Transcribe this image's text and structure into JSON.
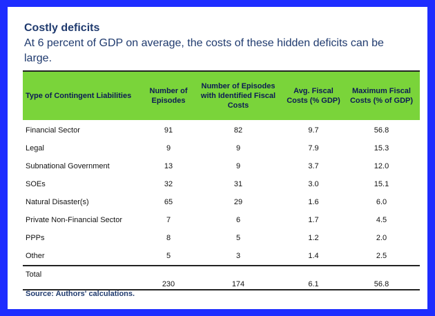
{
  "title": "Costly deficits",
  "subtitle": "At 6 percent of GDP on average, the costs of these hidden deficits can be large.",
  "table": {
    "headers": [
      "Type of Contingent Liabilities",
      "Number of Episodes",
      "Number of Episodes with Identified Fiscal Costs",
      "Avg. Fiscal Costs (% GDP)",
      "Maximum Fiscal Costs (% of GDP)"
    ],
    "rows": [
      [
        "Financial Sector",
        "91",
        "82",
        "9.7",
        "56.8"
      ],
      [
        "Legal",
        "9",
        "9",
        "7.9",
        "15.3"
      ],
      [
        "Subnational Government",
        "13",
        "9",
        "3.7",
        "12.0"
      ],
      [
        "SOEs",
        "32",
        "31",
        "3.0",
        "15.1"
      ],
      [
        "Natural  Disaster(s)",
        "65",
        "29",
        "1.6",
        "6.0"
      ],
      [
        "Private Non-Financial Sector",
        "7",
        "6",
        "1.7",
        "4.5"
      ],
      [
        "PPPs",
        "8",
        "5",
        "1.2",
        "2.0"
      ],
      [
        "Other",
        "5",
        "3",
        "1.4",
        "2.5"
      ]
    ],
    "total": [
      "Total",
      "230",
      "174",
      "6.1",
      "56.8"
    ]
  },
  "source": "Source: Authors' calculations.",
  "colors": {
    "border": "#1e2dff",
    "header_bg": "#7ad43a",
    "title_text": "#1f3a6e"
  }
}
